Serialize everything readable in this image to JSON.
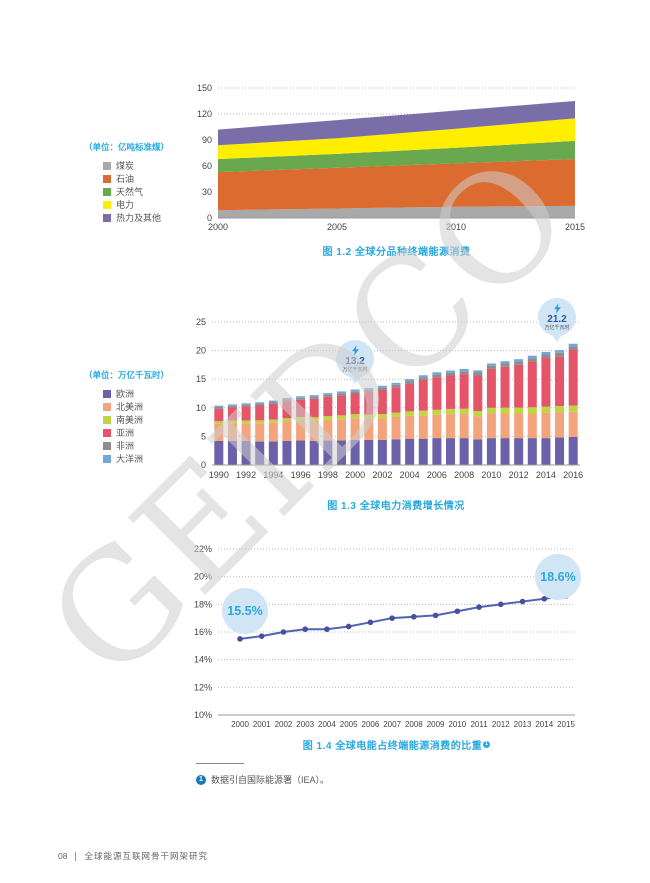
{
  "page": {
    "watermark": "GEIDCO",
    "footnote": {
      "marker": "1",
      "text": "数据引自国际能源署（IEA）。"
    },
    "footer": {
      "page_number": "08",
      "title": "全球能源互联网骨干网架研究"
    }
  },
  "colors": {
    "accent_cyan": "#29a9df",
    "callout_bg": "#d2e5f5",
    "callout_value_blue": "#2b5aa0",
    "bolt_blue": "#2d9fd8",
    "line_blue": "#5065b0",
    "dot_blue": "#44519f",
    "grid": "#bbbbbb",
    "axis": "#999999"
  },
  "chart_data": [
    {
      "type": "area",
      "title": "图 1.2  全球分品种终端能源消费",
      "unit_label": "（单位：亿吨标准煤）",
      "x": [
        2000,
        2001,
        2002,
        2003,
        2004,
        2005,
        2006,
        2007,
        2008,
        2009,
        2010,
        2011,
        2012,
        2013,
        2014,
        2015
      ],
      "x_ticks": [
        "2000",
        "2005",
        "2010",
        "2015"
      ],
      "ylim": [
        0,
        150
      ],
      "y_ticks": [
        0,
        30,
        60,
        90,
        120,
        150
      ],
      "grid": "dotted",
      "legend_position": "left",
      "series": [
        {
          "name": "煤炭",
          "color": "#a9a9a9",
          "values": [
            9.0,
            9.4,
            9.8,
            10.2,
            10.6,
            11.0,
            11.4,
            11.8,
            12.2,
            12.6,
            13.0,
            13.2,
            13.4,
            13.6,
            13.8,
            14.0
          ]
        },
        {
          "name": "石油",
          "color": "#dc6b2f",
          "values": [
            44.0,
            44.6,
            45.2,
            45.8,
            46.4,
            47.0,
            47.6,
            48.2,
            48.8,
            49.4,
            50.0,
            50.8,
            51.6,
            52.4,
            53.2,
            54.0
          ]
        },
        {
          "name": "天然气",
          "color": "#69a84e",
          "values": [
            15.0,
            15.2,
            15.4,
            15.6,
            15.8,
            16.0,
            16.4,
            16.8,
            17.2,
            17.6,
            18.0,
            18.6,
            19.2,
            19.8,
            20.4,
            21.0
          ]
        },
        {
          "name": "电力",
          "color": "#ffee00",
          "values": [
            16.0,
            16.4,
            16.8,
            17.2,
            17.6,
            18.0,
            18.8,
            19.6,
            20.4,
            21.2,
            22.0,
            22.8,
            23.6,
            24.4,
            25.2,
            26.0
          ]
        },
        {
          "name": "热力及其他",
          "color": "#7a6ea8",
          "values": [
            18.0,
            18.6,
            19.2,
            19.8,
            20.4,
            21.0,
            21.0,
            21.0,
            21.0,
            21.0,
            21.0,
            20.8,
            20.6,
            20.4,
            20.2,
            20.0
          ]
        }
      ]
    },
    {
      "type": "bar",
      "title": "图 1.3  全球电力消费增长情况",
      "unit_label": "（单位：万亿千瓦时）",
      "x": [
        1990,
        1991,
        1992,
        1993,
        1994,
        1995,
        1996,
        1997,
        1998,
        1999,
        2000,
        2001,
        2002,
        2003,
        2004,
        2005,
        2006,
        2007,
        2008,
        2009,
        2010,
        2011,
        2012,
        2013,
        2014,
        2015,
        2016
      ],
      "x_ticks": [
        "1990",
        "1992",
        "1994",
        "1996",
        "1998",
        "2000",
        "2002",
        "2004",
        "2006",
        "2008",
        "2010",
        "2012",
        "2014",
        "2016"
      ],
      "ylim": [
        0,
        25
      ],
      "y_ticks": [
        0,
        5,
        10,
        15,
        20,
        25
      ],
      "grid": "dotted",
      "legend_position": "left",
      "series": [
        {
          "name": "欧洲",
          "color": "#6a61a8",
          "values": [
            4.2,
            4.2,
            4.2,
            4.1,
            4.1,
            4.2,
            4.3,
            4.2,
            4.3,
            4.3,
            4.4,
            4.4,
            4.4,
            4.5,
            4.6,
            4.6,
            4.7,
            4.7,
            4.7,
            4.5,
            4.7,
            4.7,
            4.7,
            4.7,
            4.7,
            4.8,
            4.9
          ]
        },
        {
          "name": "北美洲",
          "color": "#f4a47c",
          "values": [
            3.0,
            3.1,
            3.1,
            3.2,
            3.3,
            3.4,
            3.5,
            3.5,
            3.6,
            3.7,
            3.8,
            3.7,
            3.8,
            3.9,
            4.0,
            4.1,
            4.1,
            4.2,
            4.2,
            4.0,
            4.3,
            4.3,
            4.3,
            4.3,
            4.4,
            4.4,
            4.4
          ]
        },
        {
          "name": "南美洲",
          "color": "#c0d544",
          "values": [
            0.45,
            0.47,
            0.49,
            0.51,
            0.54,
            0.57,
            0.6,
            0.63,
            0.66,
            0.68,
            0.7,
            0.7,
            0.72,
            0.74,
            0.78,
            0.82,
            0.86,
            0.9,
            0.93,
            0.94,
            1.0,
            1.02,
            1.05,
            1.08,
            1.1,
            1.1,
            1.1
          ]
        },
        {
          "name": "亚洲",
          "color": "#e4556a",
          "values": [
            2.2,
            2.3,
            2.45,
            2.6,
            2.75,
            2.95,
            3.0,
            3.25,
            3.35,
            3.5,
            3.6,
            3.95,
            4.2,
            4.45,
            4.85,
            5.35,
            5.7,
            5.85,
            6.05,
            6.2,
            6.8,
            7.15,
            7.45,
            8.0,
            8.5,
            8.7,
            9.7
          ]
        },
        {
          "name": "非洲",
          "color": "#8d8d8d",
          "values": [
            0.3,
            0.3,
            0.31,
            0.32,
            0.33,
            0.34,
            0.35,
            0.36,
            0.37,
            0.38,
            0.39,
            0.4,
            0.41,
            0.43,
            0.45,
            0.47,
            0.49,
            0.5,
            0.52,
            0.53,
            0.55,
            0.57,
            0.58,
            0.6,
            0.62,
            0.63,
            0.65
          ]
        },
        {
          "name": "大洋洲",
          "color": "#6fa8dc",
          "values": [
            0.22,
            0.23,
            0.24,
            0.24,
            0.25,
            0.26,
            0.27,
            0.28,
            0.29,
            0.3,
            0.31,
            0.31,
            0.32,
            0.33,
            0.34,
            0.35,
            0.36,
            0.37,
            0.38,
            0.38,
            0.4,
            0.41,
            0.42,
            0.43,
            0.44,
            0.45,
            0.45
          ]
        }
      ],
      "callouts": [
        {
          "year": 2000,
          "value": "13.2",
          "unit": "万亿千瓦时"
        },
        {
          "year": 2016,
          "value": "21.2",
          "unit": "万亿千瓦时"
        }
      ]
    },
    {
      "type": "line",
      "title": "图 1.4  全球电能占终端能源消费的比重",
      "title_superscript": "1",
      "x": [
        2000,
        2001,
        2002,
        2003,
        2004,
        2005,
        2006,
        2007,
        2008,
        2009,
        2010,
        2011,
        2012,
        2013,
        2014,
        2015
      ],
      "ylim": [
        10,
        22
      ],
      "y_ticks": [
        10,
        12,
        14,
        16,
        18,
        20,
        22
      ],
      "y_tick_suffix": "%",
      "grid": "dotted",
      "values": [
        15.5,
        15.7,
        16.0,
        16.2,
        16.2,
        16.4,
        16.7,
        17.0,
        17.1,
        17.2,
        17.5,
        17.8,
        18.0,
        18.2,
        18.4,
        18.6
      ],
      "callouts": [
        {
          "year": 2000,
          "label": "15.5%"
        },
        {
          "year": 2015,
          "label": "18.6%"
        }
      ]
    }
  ]
}
